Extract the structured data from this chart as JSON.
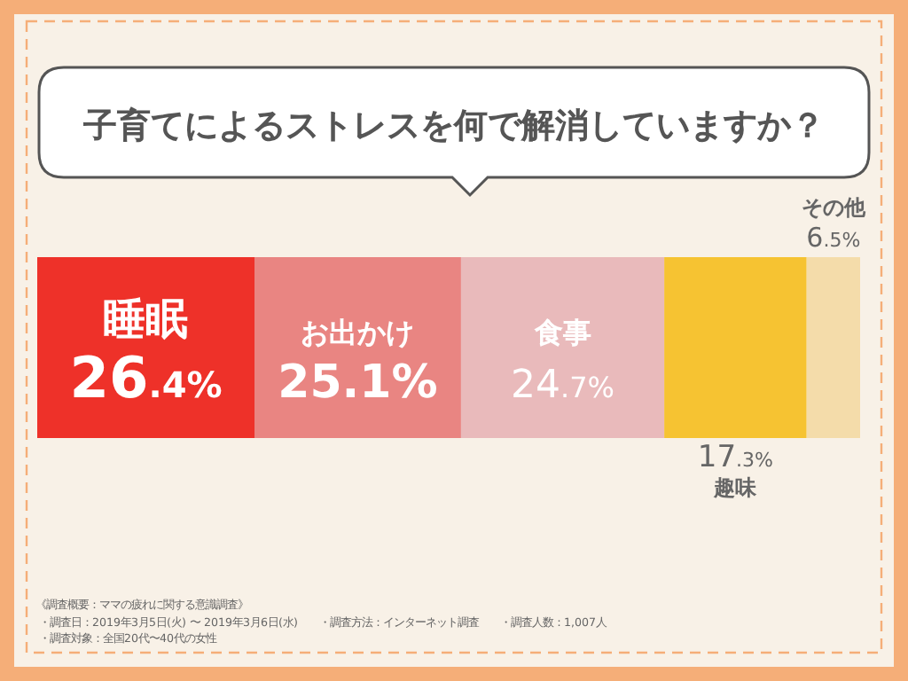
{
  "chart_data": {
    "type": "bar",
    "orientation": "horizontal",
    "stacked": true,
    "title": "子育てによるストレスを何で解消していますか？",
    "categories": [
      null
    ],
    "xlim": [
      0,
      100
    ],
    "series": [
      {
        "name": "睡眠",
        "color": "#ee3129",
        "values": [
          26.4
        ],
        "value_labels": [
          "26.4%"
        ]
      },
      {
        "name": "お出かけ",
        "color": "#e98582",
        "values": [
          25.1
        ],
        "value_labels": [
          "25.1%"
        ]
      },
      {
        "name": "食事",
        "color": "#e9babb",
        "values": [
          24.7
        ],
        "value_labels": [
          "24.7%"
        ]
      },
      {
        "name": "趣味",
        "color": "#f6c332",
        "values": [
          17.3
        ],
        "value_labels": [
          "17.3%"
        ]
      },
      {
        "name": "その他",
        "color": "#f4dcaa",
        "values": [
          6.5
        ],
        "value_labels": [
          "6.5%"
        ]
      }
    ],
    "annotations": [
      "《調査概要：ママの疲れに関する意識調査》",
      "・調査日：2019年3月5日(火) 〜 2019年3月6日(水)",
      "・調査方法：インターネット調査",
      "・調査人数：1,007人",
      "・調査対象：全国20代〜40代の女性"
    ]
  }
}
